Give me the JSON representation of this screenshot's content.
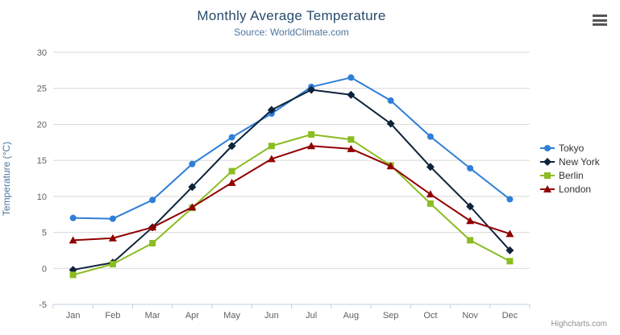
{
  "chart": {
    "title": "Monthly Average Temperature",
    "subtitle": "Source: WorldClimate.com",
    "y_axis_title": "Temperature (°C)",
    "credits": "Highcharts.com",
    "icons": {
      "context_menu": "hamburger-menu-icon"
    }
  },
  "colors": {
    "title_text": "#274b6d",
    "subtitle_text": "#4d759e",
    "axis_label": "#606060",
    "axis_line": "#c0d0e0",
    "grid_line": "#d8d8d8",
    "legend_text": "#333333",
    "credits_text": "#909090"
  },
  "chart_data": {
    "type": "line",
    "title": "Monthly Average Temperature",
    "subtitle": "Source: WorldClimate.com",
    "xlabel": "",
    "ylabel": "Temperature (°C)",
    "ylim": [
      -5,
      30
    ],
    "y_ticks": [
      -5,
      0,
      5,
      10,
      15,
      20,
      25,
      30
    ],
    "grid": true,
    "legend_position": "right",
    "categories": [
      "Jan",
      "Feb",
      "Mar",
      "Apr",
      "May",
      "Jun",
      "Jul",
      "Aug",
      "Sep",
      "Oct",
      "Nov",
      "Dec"
    ],
    "series": [
      {
        "name": "Tokyo",
        "color": "#2f7ed8",
        "marker": "circle",
        "values": [
          7.0,
          6.9,
          9.5,
          14.5,
          18.2,
          21.5,
          25.2,
          26.5,
          23.3,
          18.3,
          13.9,
          9.6
        ]
      },
      {
        "name": "New York",
        "color": "#0d233a",
        "marker": "diamond",
        "values": [
          -0.2,
          0.8,
          5.7,
          11.3,
          17.0,
          22.0,
          24.8,
          24.1,
          20.1,
          14.1,
          8.6,
          2.5
        ]
      },
      {
        "name": "Berlin",
        "color": "#8bbc21",
        "marker": "square",
        "values": [
          -0.9,
          0.6,
          3.5,
          8.4,
          13.5,
          17.0,
          18.6,
          17.9,
          14.3,
          9.0,
          3.9,
          1.0
        ]
      },
      {
        "name": "London",
        "color": "#910000",
        "marker": "triangle",
        "values": [
          3.9,
          4.2,
          5.7,
          8.5,
          11.9,
          15.2,
          17.0,
          16.6,
          14.2,
          10.3,
          6.6,
          4.8
        ]
      }
    ]
  }
}
